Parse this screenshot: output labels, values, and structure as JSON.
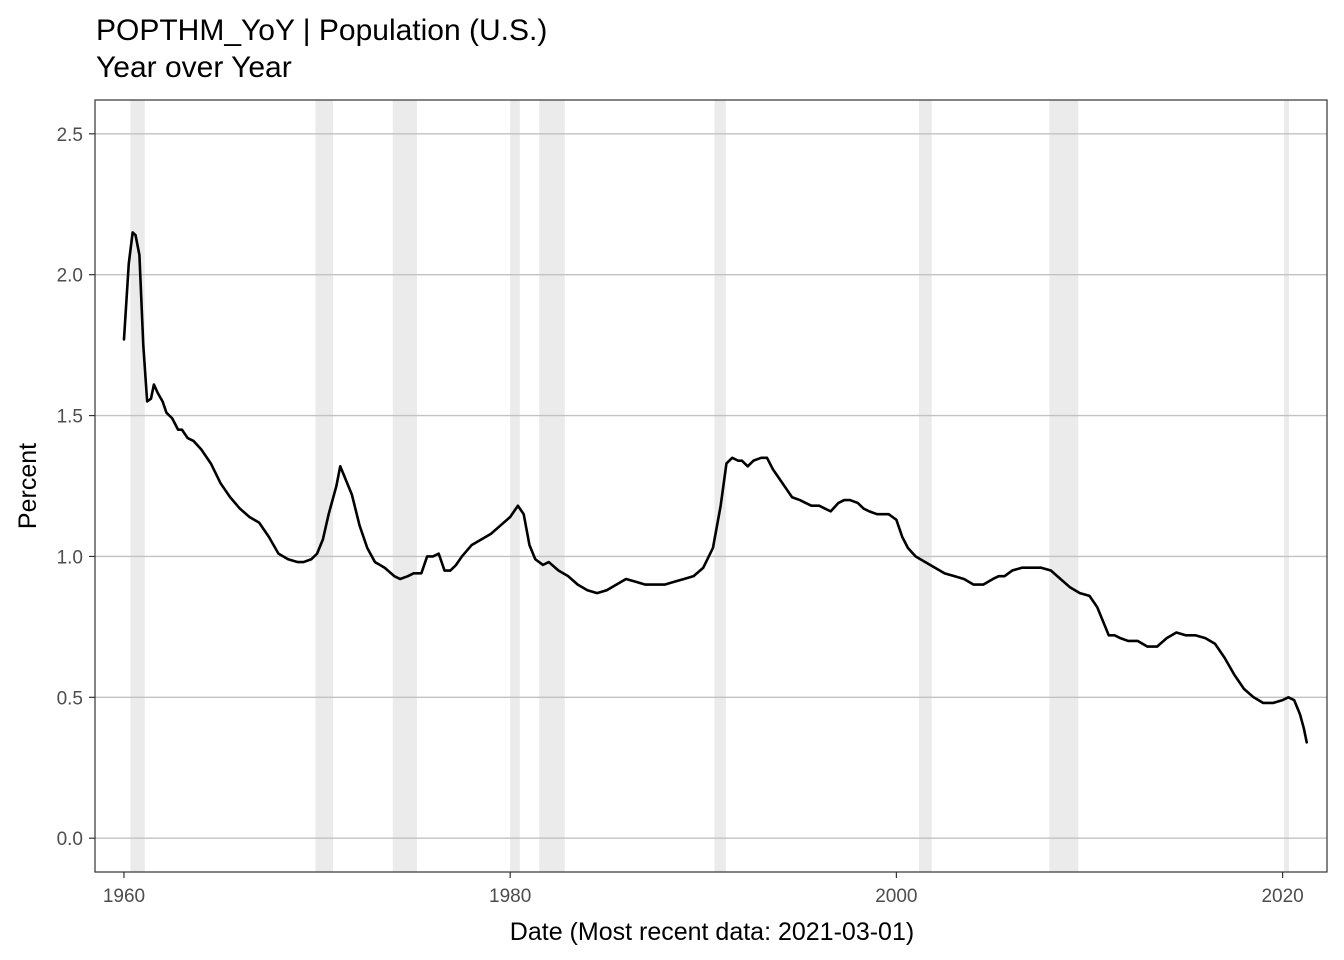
{
  "chart_data": {
    "type": "line",
    "title": "POPTHM_YoY | Population (U.S.)",
    "subtitle": "Year over Year",
    "xlabel": "Date (Most recent data: 2021-03-01)",
    "ylabel": "Percent",
    "xlim": [
      1958.5,
      2022.3
    ],
    "ylim": [
      -0.12,
      2.62
    ],
    "x_ticks": [
      1960,
      1980,
      2000,
      2020
    ],
    "x_tick_labels": [
      "1960",
      "1980",
      "2000",
      "2020"
    ],
    "y_ticks": [
      0.0,
      0.5,
      1.0,
      1.5,
      2.0,
      2.5
    ],
    "y_tick_labels": [
      "0.0",
      "0.5",
      "1.0",
      "1.5",
      "2.0",
      "2.5"
    ],
    "grid": true,
    "line_color": "#000000",
    "recession_color": "#ebebeb",
    "recessions": [
      [
        1960.33,
        1961.08
      ],
      [
        1969.92,
        1970.83
      ],
      [
        1973.92,
        1975.17
      ],
      [
        1980.0,
        1980.5
      ],
      [
        1981.5,
        1982.83
      ],
      [
        1990.58,
        1991.17
      ],
      [
        2001.17,
        2001.83
      ],
      [
        2007.92,
        2009.42
      ],
      [
        2020.08,
        2020.33
      ]
    ],
    "series": [
      {
        "x": [
          1960.0,
          1960.25,
          1960.45,
          1960.6,
          1960.8,
          1961.0,
          1961.2,
          1961.4,
          1961.55,
          1961.75,
          1962.0,
          1962.2,
          1962.5,
          1962.8,
          1963.0,
          1963.3,
          1963.6,
          1964.0,
          1964.5,
          1965.0,
          1965.5,
          1966.0,
          1966.5,
          1967.0,
          1967.5,
          1968.0,
          1968.5,
          1969.0,
          1969.3,
          1969.7,
          1970.0,
          1970.3,
          1970.6,
          1971.0,
          1971.2,
          1971.5,
          1971.8,
          1972.2,
          1972.6,
          1973.0,
          1973.5,
          1974.0,
          1974.3,
          1974.7,
          1975.0,
          1975.4,
          1975.7,
          1976.0,
          1976.3,
          1976.6,
          1976.9,
          1977.2,
          1977.5,
          1978.0,
          1978.5,
          1979.0,
          1979.5,
          1980.0,
          1980.4,
          1980.7,
          1981.0,
          1981.3,
          1981.7,
          1982.0,
          1982.5,
          1983.0,
          1983.5,
          1984.0,
          1984.5,
          1985.0,
          1985.5,
          1986.0,
          1986.5,
          1987.0,
          1987.5,
          1988.0,
          1988.5,
          1989.0,
          1989.5,
          1990.0,
          1990.5,
          1990.9,
          1991.2,
          1991.5,
          1991.8,
          1992.0,
          1992.3,
          1992.6,
          1993.0,
          1993.3,
          1993.6,
          1994.0,
          1994.3,
          1994.6,
          1995.0,
          1995.3,
          1995.6,
          1996.0,
          1996.3,
          1996.6,
          1997.0,
          1997.3,
          1997.6,
          1998.0,
          1998.3,
          1998.6,
          1999.0,
          1999.3,
          1999.6,
          2000.0,
          2000.3,
          2000.6,
          2001.0,
          2001.5,
          2002.0,
          2002.5,
          2003.0,
          2003.5,
          2004.0,
          2004.5,
          2005.0,
          2005.3,
          2005.6,
          2006.0,
          2006.5,
          2007.0,
          2007.5,
          2008.0,
          2008.5,
          2009.0,
          2009.5,
          2010.0,
          2010.4,
          2010.7,
          2011.0,
          2011.3,
          2011.6,
          2012.0,
          2012.5,
          2013.0,
          2013.5,
          2014.0,
          2014.5,
          2015.0,
          2015.5,
          2016.0,
          2016.5,
          2017.0,
          2017.5,
          2018.0,
          2018.5,
          2019.0,
          2019.5,
          2020.0,
          2020.3,
          2020.6,
          2020.9,
          2021.1,
          2021.25
        ],
        "y": [
          1.77,
          2.04,
          2.15,
          2.14,
          2.07,
          1.75,
          1.55,
          1.56,
          1.61,
          1.58,
          1.55,
          1.51,
          1.49,
          1.45,
          1.45,
          1.42,
          1.41,
          1.38,
          1.33,
          1.26,
          1.21,
          1.17,
          1.14,
          1.12,
          1.07,
          1.01,
          0.99,
          0.98,
          0.98,
          0.99,
          1.01,
          1.06,
          1.15,
          1.25,
          1.32,
          1.27,
          1.22,
          1.11,
          1.03,
          0.98,
          0.96,
          0.93,
          0.92,
          0.93,
          0.94,
          0.94,
          1.0,
          1.0,
          1.01,
          0.95,
          0.95,
          0.97,
          1.0,
          1.04,
          1.06,
          1.08,
          1.11,
          1.14,
          1.18,
          1.15,
          1.04,
          0.99,
          0.97,
          0.98,
          0.95,
          0.93,
          0.9,
          0.88,
          0.87,
          0.88,
          0.9,
          0.92,
          0.91,
          0.9,
          0.9,
          0.9,
          0.91,
          0.92,
          0.93,
          0.96,
          1.03,
          1.18,
          1.33,
          1.35,
          1.34,
          1.34,
          1.32,
          1.34,
          1.35,
          1.35,
          1.31,
          1.27,
          1.24,
          1.21,
          1.2,
          1.19,
          1.18,
          1.18,
          1.17,
          1.16,
          1.19,
          1.2,
          1.2,
          1.19,
          1.17,
          1.16,
          1.15,
          1.15,
          1.15,
          1.13,
          1.07,
          1.03,
          1.0,
          0.98,
          0.96,
          0.94,
          0.93,
          0.92,
          0.9,
          0.9,
          0.92,
          0.93,
          0.93,
          0.95,
          0.96,
          0.96,
          0.96,
          0.95,
          0.92,
          0.89,
          0.87,
          0.86,
          0.82,
          0.77,
          0.72,
          0.72,
          0.71,
          0.7,
          0.7,
          0.68,
          0.68,
          0.71,
          0.73,
          0.72,
          0.72,
          0.71,
          0.69,
          0.64,
          0.58,
          0.53,
          0.5,
          0.48,
          0.48,
          0.49,
          0.5,
          0.49,
          0.44,
          0.39,
          0.34
        ]
      }
    ]
  }
}
